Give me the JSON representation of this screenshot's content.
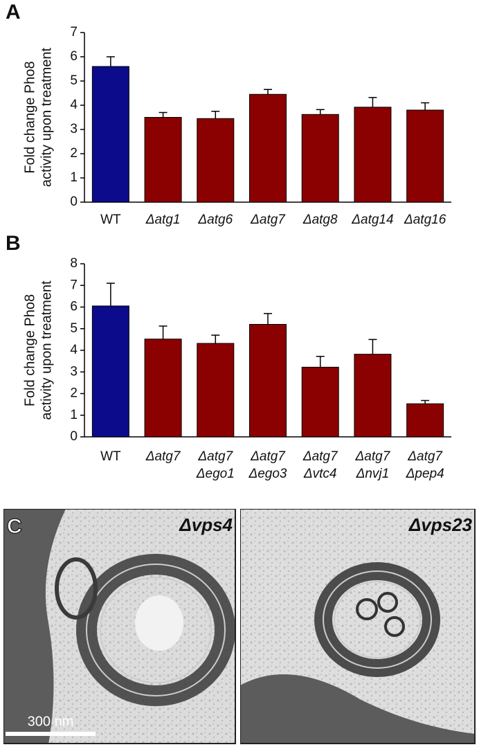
{
  "chart_data": [
    {
      "type": "bar",
      "panel": "A",
      "ylabel": [
        "Fold change Pho8",
        "activity upon treatment"
      ],
      "categories": [
        [
          "WT"
        ],
        [
          "Δatg1"
        ],
        [
          "Δatg6"
        ],
        [
          "Δatg7"
        ],
        [
          "Δatg8"
        ],
        [
          "Δatg14"
        ],
        [
          "Δatg16"
        ]
      ],
      "values": [
        5.6,
        3.5,
        3.45,
        4.45,
        3.62,
        3.92,
        3.8
      ],
      "errors": [
        0.4,
        0.2,
        0.3,
        0.2,
        0.2,
        0.4,
        0.3
      ],
      "colors": [
        "#0b0b8c",
        "#8b0000",
        "#8b0000",
        "#8b0000",
        "#8b0000",
        "#8b0000",
        "#8b0000"
      ],
      "ylim": [
        0,
        7
      ],
      "yticks": [
        0,
        1,
        2,
        3,
        4,
        5,
        6,
        7
      ]
    },
    {
      "type": "bar",
      "panel": "B",
      "ylabel": [
        "Fold change Pho8",
        "activity upon treatment"
      ],
      "categories": [
        [
          "WT"
        ],
        [
          "Δatg7"
        ],
        [
          "Δatg7",
          "Δego1"
        ],
        [
          "Δatg7",
          "Δego3"
        ],
        [
          "Δatg7",
          "Δvtc4"
        ],
        [
          "Δatg7",
          "Δnvj1"
        ],
        [
          "Δatg7",
          "Δpep4"
        ]
      ],
      "values": [
        6.05,
        4.52,
        4.32,
        5.2,
        3.22,
        3.82,
        1.53
      ],
      "errors": [
        1.05,
        0.6,
        0.38,
        0.5,
        0.5,
        0.68,
        0.15
      ],
      "colors": [
        "#0b0b8c",
        "#8b0000",
        "#8b0000",
        "#8b0000",
        "#8b0000",
        "#8b0000",
        "#8b0000"
      ],
      "ylim": [
        0,
        8
      ],
      "yticks": [
        0,
        1,
        2,
        3,
        4,
        5,
        6,
        7,
        8
      ]
    }
  ],
  "micrographs": {
    "panel": "C",
    "labels": [
      "Δvps4",
      "Δvps23"
    ],
    "scale_bar": "300 nm"
  }
}
